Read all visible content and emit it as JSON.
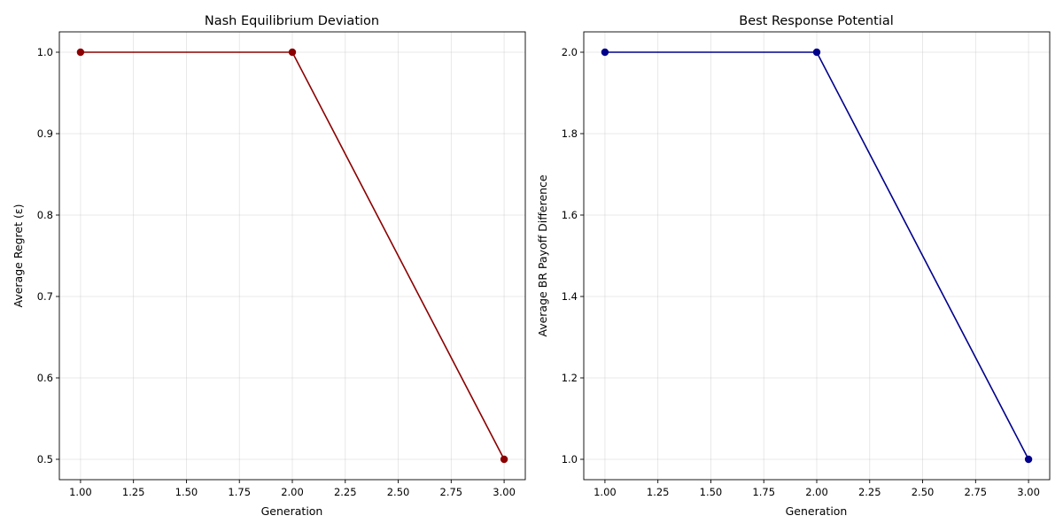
{
  "chart_data": [
    {
      "type": "line",
      "title": "Nash Equilibrium Deviation",
      "xlabel": "Generation",
      "ylabel": "Average Regret (ε)",
      "xlim": [
        0.9,
        3.1
      ],
      "ylim": [
        0.475,
        1.025
      ],
      "x_ticks": [
        1.0,
        1.25,
        1.5,
        1.75,
        2.0,
        2.25,
        2.5,
        2.75,
        3.0
      ],
      "x_tick_labels": [
        "1.00",
        "1.25",
        "1.50",
        "1.75",
        "2.00",
        "2.25",
        "2.50",
        "2.75",
        "3.00"
      ],
      "y_ticks": [
        0.5,
        0.6,
        0.7,
        0.8,
        0.9,
        1.0
      ],
      "y_tick_labels": [
        "0.5",
        "0.6",
        "0.7",
        "0.8",
        "0.9",
        "1.0"
      ],
      "grid": true,
      "color": "#8b0000",
      "series": [
        {
          "x": [
            1,
            2,
            3
          ],
          "y": [
            1.0,
            1.0,
            0.5
          ]
        }
      ]
    },
    {
      "type": "line",
      "title": "Best Response Potential",
      "xlabel": "Generation",
      "ylabel": "Average BR Payoff Difference",
      "xlim": [
        0.9,
        3.1
      ],
      "ylim": [
        0.95,
        2.05
      ],
      "x_ticks": [
        1.0,
        1.25,
        1.5,
        1.75,
        2.0,
        2.25,
        2.5,
        2.75,
        3.0
      ],
      "x_tick_labels": [
        "1.00",
        "1.25",
        "1.50",
        "1.75",
        "2.00",
        "2.25",
        "2.50",
        "2.75",
        "3.00"
      ],
      "y_ticks": [
        1.0,
        1.2,
        1.4,
        1.6,
        1.8,
        2.0
      ],
      "y_tick_labels": [
        "1.0",
        "1.2",
        "1.4",
        "1.6",
        "1.8",
        "2.0"
      ],
      "grid": true,
      "color": "#00008b",
      "series": [
        {
          "x": [
            1,
            2,
            3
          ],
          "y": [
            2.0,
            2.0,
            1.0
          ]
        }
      ]
    }
  ]
}
